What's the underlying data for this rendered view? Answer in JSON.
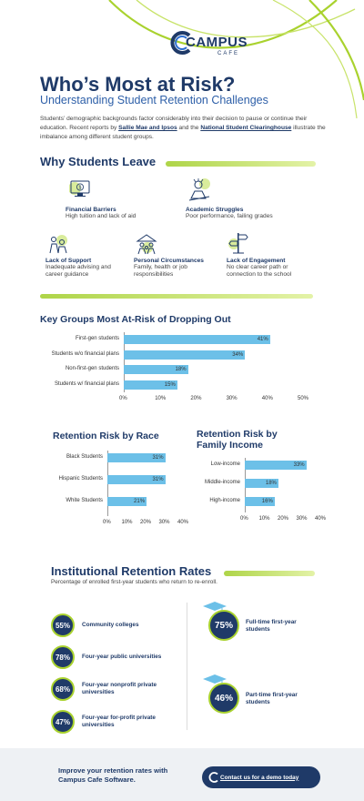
{
  "brand": {
    "name": "CAMPUS",
    "sub": "CAFE"
  },
  "header": {
    "title": "Who’s Most at Risk?",
    "subtitle": "Understanding Student Retention Challenges",
    "intro_1": "Students’ demographic backgrounds factor considerably into their decision to pause or continue their education. Recent reports by ",
    "link_1": "Sallie Mae and Ipsos",
    "intro_2": " and the ",
    "link_2": "National Student Clearinghouse",
    "intro_3": " illustrate the imbalance among different student groups."
  },
  "why": {
    "heading": "Why Students Leave",
    "reasons": [
      {
        "icon": "monitor-dollar-icon",
        "title": "Financial Barriers",
        "text": "High tuition and lack of aid"
      },
      {
        "icon": "stressed-student-icon",
        "title": "Academic Struggles",
        "text": "Poor performance, failing grades"
      },
      {
        "icon": "support-people-icon",
        "title": "Lack of Support",
        "text": "Inadequate advising and career guidance"
      },
      {
        "icon": "family-icon",
        "title": "Personal Circumstances",
        "text": "Family, health or job responsibilities"
      },
      {
        "icon": "signpost-icon",
        "title": "Lack of Engagement",
        "text": "No clear career path or connection to the school"
      }
    ]
  },
  "chart_data": [
    {
      "type": "bar",
      "title": "Key Groups Most At-Risk of Dropping Out",
      "categories": [
        "First-gen students",
        "Students w/o financial plans",
        "Non-first-gen students",
        "Students w/ financial plans"
      ],
      "values": [
        41,
        34,
        18,
        15
      ],
      "ticks": [
        "0%",
        "10%",
        "20%",
        "30%",
        "40%",
        "50%"
      ],
      "xlim": [
        0,
        50
      ],
      "color": "#6cc0e8"
    },
    {
      "type": "bar",
      "title": "Retention Risk by Race",
      "categories": [
        "Black Students",
        "Hispanic Students",
        "White Students"
      ],
      "values": [
        31,
        31,
        21
      ],
      "ticks": [
        "0%",
        "10%",
        "20%",
        "30%",
        "40%"
      ],
      "xlim": [
        0,
        40
      ],
      "color": "#6cc0e8"
    },
    {
      "type": "bar",
      "title": "Retention Risk by Family Income",
      "categories": [
        "Low-income",
        "Middle-income",
        "High-income"
      ],
      "values": [
        33,
        18,
        16
      ],
      "ticks": [
        "0%",
        "10%",
        "20%",
        "30%",
        "40%"
      ],
      "xlim": [
        0,
        40
      ],
      "color": "#6cc0e8"
    }
  ],
  "retention": {
    "heading": "Institutional Retention Rates",
    "note": "Percentage of enrolled first-year students who return to re-enroll.",
    "left": [
      {
        "value": "55%",
        "label": "Community colleges"
      },
      {
        "value": "78%",
        "label": "Four-year public universities"
      },
      {
        "value": "68%",
        "label": "Four-year nonprofit private universities"
      },
      {
        "value": "47%",
        "label": "Four-year for-profit private universities"
      }
    ],
    "right": [
      {
        "value": "75%",
        "label": "Full-time first-year students"
      },
      {
        "value": "46%",
        "label": "Part-time first-year students"
      }
    ]
  },
  "footer": {
    "text": "Improve your retention rates with Campus Cafe Software.",
    "cta": "Contact us for a demo today"
  }
}
